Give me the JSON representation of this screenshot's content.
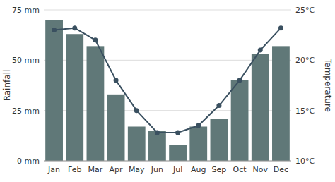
{
  "chart_data": {
    "type": "bar",
    "categories": [
      "Jan",
      "Feb",
      "Mar",
      "Apr",
      "May",
      "Jun",
      "Jul",
      "Aug",
      "Sep",
      "Oct",
      "Nov",
      "Dec"
    ],
    "series": [
      {
        "type": "bar",
        "color": "#607878",
        "values": [
          70,
          63,
          57,
          33,
          17,
          15,
          8,
          17,
          21,
          40,
          53,
          57
        ]
      },
      {
        "type": "line",
        "axis": "y2",
        "color": "#3a5060",
        "marker": "circle",
        "line_style": "solid",
        "values": [
          23.0,
          23.2,
          22.0,
          18.0,
          15.0,
          12.8,
          12.8,
          13.5,
          15.5,
          18.0,
          21.0,
          23.2
        ]
      }
    ],
    "ylabel": "Rainfall",
    "y2label": "Temperature",
    "ylim": [
      0,
      75
    ],
    "yticks": [
      {
        "value": 0,
        "label": "0 mm"
      },
      {
        "value": 25,
        "label": "25 mm"
      },
      {
        "value": 50,
        "label": "50 mm"
      },
      {
        "value": 75,
        "label": "75 mm"
      }
    ],
    "y2lim": [
      10,
      25
    ],
    "y2ticks": [
      {
        "value": 10,
        "label": "10°C"
      },
      {
        "value": 15,
        "label": "15°C"
      },
      {
        "value": 20,
        "label": "20°C"
      },
      {
        "value": 25,
        "label": "25°C"
      }
    ],
    "grid": true
  }
}
